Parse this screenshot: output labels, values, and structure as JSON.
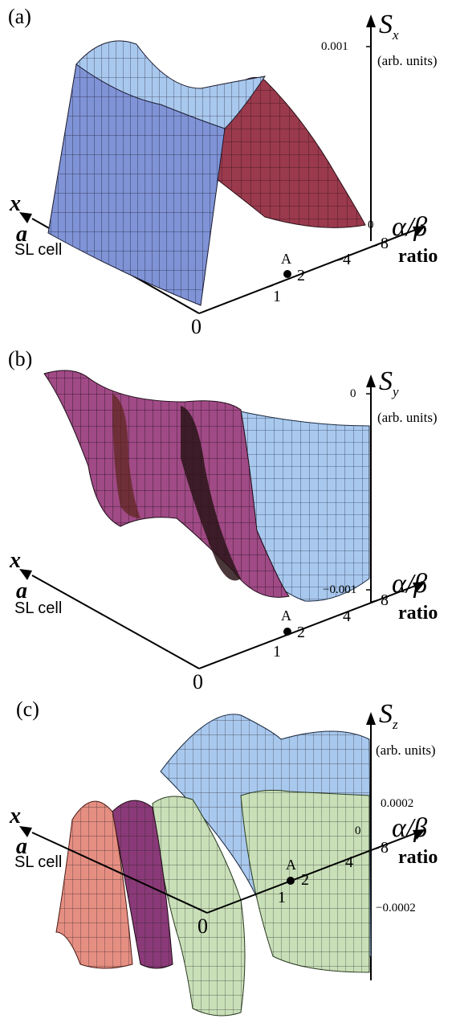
{
  "chart_data": [
    {
      "type": "area",
      "panel_label": "(a)",
      "zlabel": "S_x",
      "zunits": "(arb. units)",
      "z_ticks": [
        "0.001",
        "0"
      ],
      "ratio_label": "α/β",
      "ratio_word": "ratio",
      "ratio_ticks": [
        "1",
        "2",
        "4",
        "8"
      ],
      "point_label": "A",
      "x_label": "x",
      "a_label": "a",
      "cell_label": "SL cell",
      "origin_label": "0"
    },
    {
      "type": "area",
      "panel_label": "(b)",
      "zlabel": "S_y",
      "zunits": "(arb. units)",
      "z_ticks": [
        "0",
        "−0.001"
      ],
      "ratio_label": "α/β",
      "ratio_word": "ratio",
      "ratio_ticks": [
        "1",
        "2",
        "4",
        "8"
      ],
      "point_label": "A",
      "x_label": "x",
      "a_label": "a",
      "cell_label": "SL cell",
      "origin_label": "0"
    },
    {
      "type": "area",
      "panel_label": "(c)",
      "zlabel": "S_z",
      "zunits": "(arb. units)",
      "z_ticks": [
        "0.0002",
        "0",
        "−0.0002"
      ],
      "ratio_label": "α/β",
      "ratio_word": "ratio",
      "ratio_ticks": [
        "1",
        "2",
        "4",
        "8"
      ],
      "point_label": "A",
      "x_label": "x",
      "a_label": "a",
      "cell_label": "SL cell",
      "origin_label": "0"
    }
  ],
  "colors": {
    "blue_face": "#7f93d6",
    "light_blue": "#a9c8ee",
    "maroon": "#9b3a4d",
    "magenta": "#a04a86",
    "green_face": "#c8dfb8",
    "salmon": "#e58e82",
    "grid_line": "#1a1a2e"
  }
}
